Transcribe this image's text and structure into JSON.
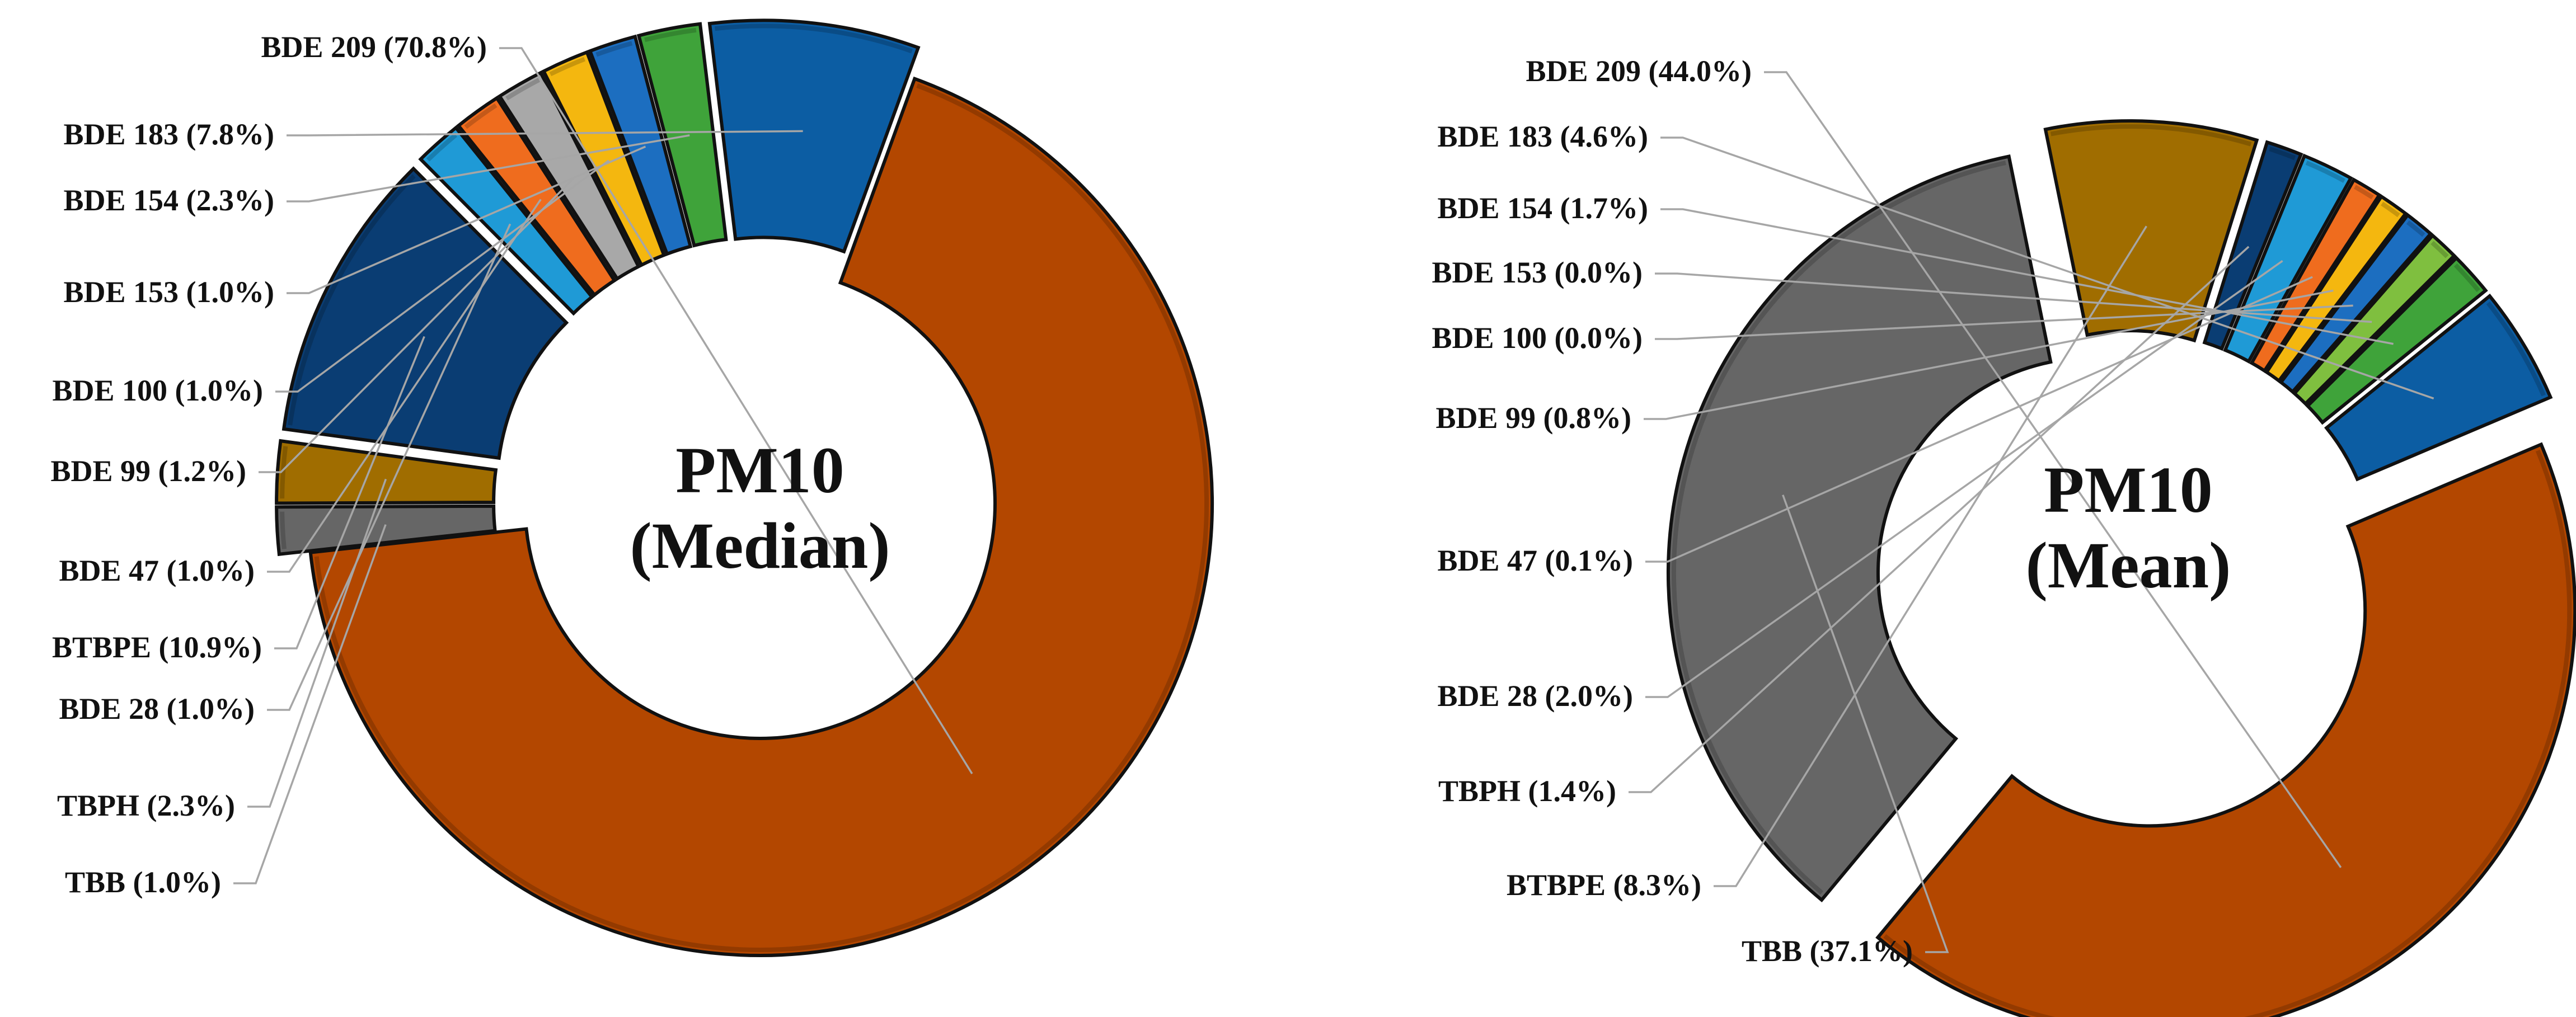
{
  "chart_data": [
    {
      "type": "pie",
      "donut": true,
      "center_title": [
        "PM10",
        "(Median)"
      ],
      "unit": "%",
      "slices": [
        {
          "name": "BDE 209",
          "value": 70.8,
          "color": "#b34700",
          "exploded": false
        },
        {
          "name": "TBB",
          "value": 1.0,
          "color": "#666666",
          "exploded": true
        },
        {
          "name": "TBPH",
          "value": 2.3,
          "color": "#a06d00",
          "exploded": true
        },
        {
          "name": "BTBPE",
          "value": 10.9,
          "color": "#0a3d73",
          "exploded": true
        },
        {
          "name": "BDE 28",
          "value": 1.0,
          "color": "#1f9ad6",
          "exploded": true
        },
        {
          "name": "BDE 47",
          "value": 1.0,
          "color": "#ef6c1e",
          "exploded": true
        },
        {
          "name": "BDE 99",
          "value": 1.2,
          "color": "#a8a8a8",
          "exploded": true
        },
        {
          "name": "BDE 100",
          "value": 1.0,
          "color": "#f4b70f",
          "exploded": true
        },
        {
          "name": "BDE 153",
          "value": 1.0,
          "color": "#1c6ec0",
          "exploded": true
        },
        {
          "name": "BDE 154",
          "value": 2.3,
          "color": "#3fa33a",
          "exploded": true
        },
        {
          "name": "BDE 183",
          "value": 7.8,
          "color": "#0c5da3",
          "exploded": true
        }
      ],
      "labels": [
        {
          "slice": "BDE 209",
          "text": "BDE 209 (70.8%)"
        },
        {
          "slice": "BDE 183",
          "text": "BDE 183 (7.8%)"
        },
        {
          "slice": "BDE 154",
          "text": "BDE 154 (2.3%)"
        },
        {
          "slice": "BDE 153",
          "text": "BDE 153 (1.0%)"
        },
        {
          "slice": "BDE 100",
          "text": "BDE 100 (1.0%)"
        },
        {
          "slice": "BDE 99",
          "text": "BDE 99 (1.2%)"
        },
        {
          "slice": "BDE 47",
          "text": "BDE 47 (1.0%)"
        },
        {
          "slice": "BTBPE",
          "text": "BTBPE (10.9%)"
        },
        {
          "slice": "BDE 28",
          "text": "BDE 28 (1.0%)"
        },
        {
          "slice": "TBPH",
          "text": "TBPH (2.3%)"
        },
        {
          "slice": "TBB",
          "text": "TBB (1.0%)"
        }
      ]
    },
    {
      "type": "pie",
      "donut": true,
      "center_title": [
        "PM10",
        "(Mean)"
      ],
      "unit": "%",
      "slices": [
        {
          "name": "BDE 209",
          "value": 44.0,
          "color": "#b34700",
          "exploded": true
        },
        {
          "name": "TBB",
          "value": 37.1,
          "color": "#666666",
          "exploded": true
        },
        {
          "name": "BTBPE",
          "value": 8.3,
          "color": "#a06d00",
          "exploded": true
        },
        {
          "name": "TBPH",
          "value": 1.4,
          "color": "#0a3d73",
          "exploded": true
        },
        {
          "name": "BDE 28",
          "value": 2.0,
          "color": "#1f9ad6",
          "exploded": true
        },
        {
          "name": "BDE 47",
          "value": 0.1,
          "color": "#ef6c1e",
          "exploded": true
        },
        {
          "name": "BDE 99",
          "value": 0.8,
          "color": "#f4b70f",
          "exploded": true
        },
        {
          "name": "BDE 100",
          "value": 0.0,
          "color": "#1c6ec0",
          "exploded": true
        },
        {
          "name": "BDE 153",
          "value": 0.0,
          "color": "#7fbf3f",
          "exploded": true
        },
        {
          "name": "BDE 154",
          "value": 1.7,
          "color": "#3fa33a",
          "exploded": true
        },
        {
          "name": "BDE 183",
          "value": 4.6,
          "color": "#0c5da3",
          "exploded": true
        }
      ],
      "labels": [
        {
          "slice": "BDE 209",
          "text": "BDE 209 (44.0%)"
        },
        {
          "slice": "BDE 183",
          "text": "BDE 183 (4.6%)"
        },
        {
          "slice": "BDE 154",
          "text": "BDE 154 (1.7%)"
        },
        {
          "slice": "BDE 153",
          "text": "BDE 153 (0.0%)"
        },
        {
          "slice": "BDE 100",
          "text": "BDE 100 (0.0%)"
        },
        {
          "slice": "BDE 99",
          "text": "BDE 99 (0.8%)"
        },
        {
          "slice": "BDE 47",
          "text": "BDE 47 (0.1%)"
        },
        {
          "slice": "BDE 28",
          "text": "BDE 28 (2.0%)"
        },
        {
          "slice": "TBPH",
          "text": "TBPH (1.4%)"
        },
        {
          "slice": "BTBPE",
          "text": "BTBPE (8.3%)"
        },
        {
          "slice": "TBB",
          "text": "TBB (37.1%)"
        }
      ]
    }
  ]
}
